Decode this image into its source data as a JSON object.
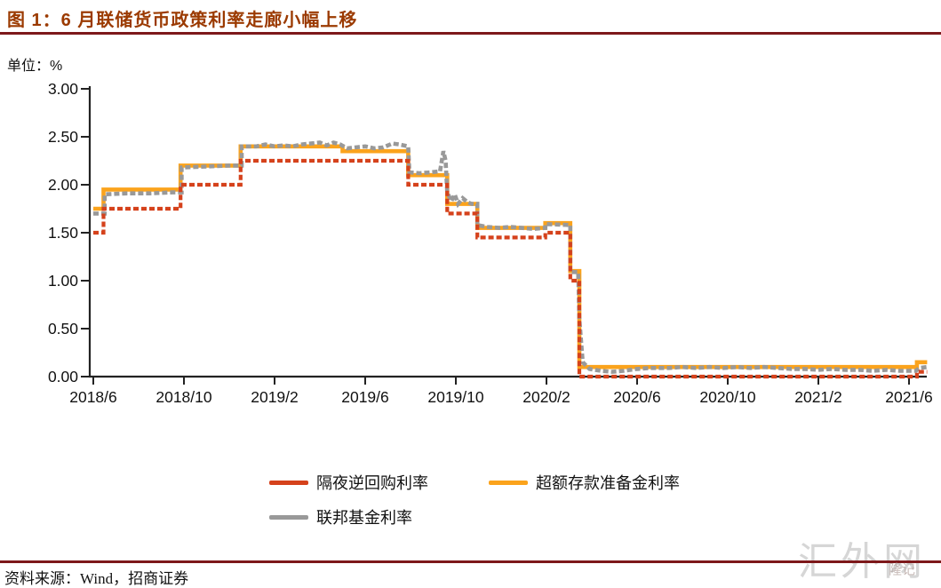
{
  "title": "图 1：6 月联储货币政策利率走廊小幅上移",
  "unit_label": "单位：%",
  "source": "资料来源：Wind，招商证券",
  "watermark": "汇外网",
  "watermark_small": "隆记",
  "colors": {
    "title": "#9b3a00",
    "rule": "#7d181a",
    "axis": "#222222",
    "onrrp_red": "#d5421c",
    "ioer_orange": "#fba31c",
    "effr_gray": "#999999",
    "watermark_gray": "#d6d6d6"
  },
  "chart_data": {
    "type": "line",
    "title": "图 1：6 月联储货币政策利率走廊小幅上移",
    "xlabel": "",
    "ylabel": "单位：%",
    "grid": false,
    "legend_position": "bottom",
    "x_unit": "months since 2018/6",
    "xlim": [
      -0.2,
      36.9
    ],
    "ylim": [
      0.0,
      3.0
    ],
    "ytick_values": [
      0.0,
      0.5,
      1.0,
      1.5,
      2.0,
      2.5,
      3.0
    ],
    "ytick_labels": [
      "0.00",
      "0.50",
      "1.00",
      "1.50",
      "2.00",
      "2.50",
      "3.00"
    ],
    "xtick_positions": [
      0,
      4,
      8,
      12,
      16,
      20,
      24,
      28,
      32,
      36
    ],
    "xtick_labels": [
      "2018/6",
      "2018/10",
      "2019/2",
      "2019/6",
      "2019/10",
      "2020/2",
      "2020/6",
      "2020/10",
      "2021/2",
      "2021/6"
    ],
    "series": [
      {
        "name": "隔夜逆回购利率",
        "color": "#d5421c",
        "style": "dashed",
        "width": 4.2,
        "points": [
          [
            0,
            1.5
          ],
          [
            0.45,
            1.5
          ],
          [
            0.45,
            1.75
          ],
          [
            3.85,
            1.75
          ],
          [
            3.85,
            2.0
          ],
          [
            6.5,
            2.0
          ],
          [
            6.5,
            2.25
          ],
          [
            13.9,
            2.25
          ],
          [
            13.9,
            2.0
          ],
          [
            15.62,
            2.0
          ],
          [
            15.62,
            1.7
          ],
          [
            16.95,
            1.7
          ],
          [
            16.95,
            1.45
          ],
          [
            19.95,
            1.45
          ],
          [
            19.95,
            1.5
          ],
          [
            21.05,
            1.5
          ],
          [
            21.05,
            1.0
          ],
          [
            21.45,
            1.0
          ],
          [
            21.45,
            0.0
          ],
          [
            36.35,
            0.0
          ],
          [
            36.35,
            0.05
          ],
          [
            36.8,
            0.05
          ]
        ]
      },
      {
        "name": "超额存款准备金利率",
        "color": "#fba31c",
        "style": "solid",
        "width": 4.6,
        "points": [
          [
            0,
            1.75
          ],
          [
            0.45,
            1.75
          ],
          [
            0.45,
            1.95
          ],
          [
            3.85,
            1.95
          ],
          [
            3.85,
            2.2
          ],
          [
            6.5,
            2.2
          ],
          [
            6.5,
            2.4
          ],
          [
            11.0,
            2.4
          ],
          [
            11.0,
            2.35
          ],
          [
            13.9,
            2.35
          ],
          [
            13.9,
            2.1
          ],
          [
            15.62,
            2.1
          ],
          [
            15.62,
            1.8
          ],
          [
            16.95,
            1.8
          ],
          [
            16.95,
            1.55
          ],
          [
            19.95,
            1.55
          ],
          [
            19.95,
            1.6
          ],
          [
            21.05,
            1.6
          ],
          [
            21.05,
            1.1
          ],
          [
            21.45,
            1.1
          ],
          [
            21.45,
            0.1
          ],
          [
            36.35,
            0.1
          ],
          [
            36.35,
            0.15
          ],
          [
            36.8,
            0.15
          ]
        ]
      },
      {
        "name": "联邦基金利率",
        "color": "#999999",
        "style": "dashed",
        "width": 4.6,
        "points": [
          [
            0,
            1.7
          ],
          [
            0.5,
            1.7
          ],
          [
            0.5,
            1.9
          ],
          [
            1.5,
            1.91
          ],
          [
            2.5,
            1.91
          ],
          [
            3.5,
            1.92
          ],
          [
            3.9,
            1.92
          ],
          [
            3.9,
            2.18
          ],
          [
            5,
            2.19
          ],
          [
            6,
            2.2
          ],
          [
            6.55,
            2.2
          ],
          [
            6.55,
            2.4
          ],
          [
            7.2,
            2.4
          ],
          [
            7.6,
            2.42
          ],
          [
            8.0,
            2.4
          ],
          [
            8.4,
            2.41
          ],
          [
            8.8,
            2.4
          ],
          [
            9.2,
            2.42
          ],
          [
            9.6,
            2.43
          ],
          [
            10.0,
            2.44
          ],
          [
            10.3,
            2.41
          ],
          [
            10.6,
            2.44
          ],
          [
            10.9,
            2.42
          ],
          [
            11.2,
            2.38
          ],
          [
            11.6,
            2.39
          ],
          [
            12.0,
            2.4
          ],
          [
            12.4,
            2.38
          ],
          [
            12.8,
            2.39
          ],
          [
            13.2,
            2.43
          ],
          [
            13.5,
            2.42
          ],
          [
            13.9,
            2.4
          ],
          [
            13.95,
            2.13
          ],
          [
            14.4,
            2.12
          ],
          [
            14.9,
            2.13
          ],
          [
            15.3,
            2.14
          ],
          [
            15.45,
            2.35
          ],
          [
            15.55,
            2.25
          ],
          [
            15.62,
            1.92
          ],
          [
            15.8,
            1.83
          ],
          [
            15.95,
            1.9
          ],
          [
            16.1,
            1.8
          ],
          [
            16.3,
            1.86
          ],
          [
            16.5,
            1.82
          ],
          [
            16.7,
            1.8
          ],
          [
            16.95,
            1.8
          ],
          [
            16.95,
            1.58
          ],
          [
            17.4,
            1.56
          ],
          [
            17.9,
            1.55
          ],
          [
            18.4,
            1.56
          ],
          [
            18.9,
            1.55
          ],
          [
            19.4,
            1.54
          ],
          [
            19.95,
            1.55
          ],
          [
            19.95,
            1.59
          ],
          [
            21.05,
            1.58
          ],
          [
            21.05,
            1.09
          ],
          [
            21.4,
            1.09
          ],
          [
            21.45,
            0.6
          ],
          [
            21.6,
            0.15
          ],
          [
            21.9,
            0.08
          ],
          [
            22.4,
            0.06
          ],
          [
            22.9,
            0.05
          ],
          [
            23.4,
            0.06
          ],
          [
            24.0,
            0.08
          ],
          [
            24.6,
            0.09
          ],
          [
            25.4,
            0.09
          ],
          [
            26.0,
            0.1
          ],
          [
            26.6,
            0.09
          ],
          [
            27.2,
            0.1
          ],
          [
            27.8,
            0.09
          ],
          [
            28.4,
            0.1
          ],
          [
            29.0,
            0.09
          ],
          [
            29.6,
            0.1
          ],
          [
            30.2,
            0.09
          ],
          [
            30.8,
            0.08
          ],
          [
            31.4,
            0.08
          ],
          [
            32.0,
            0.07
          ],
          [
            32.6,
            0.08
          ],
          [
            33.2,
            0.07
          ],
          [
            33.8,
            0.07
          ],
          [
            34.4,
            0.06
          ],
          [
            35.0,
            0.07
          ],
          [
            35.6,
            0.06
          ],
          [
            36.3,
            0.06
          ],
          [
            36.45,
            0.09
          ],
          [
            36.8,
            0.1
          ]
        ]
      }
    ]
  }
}
